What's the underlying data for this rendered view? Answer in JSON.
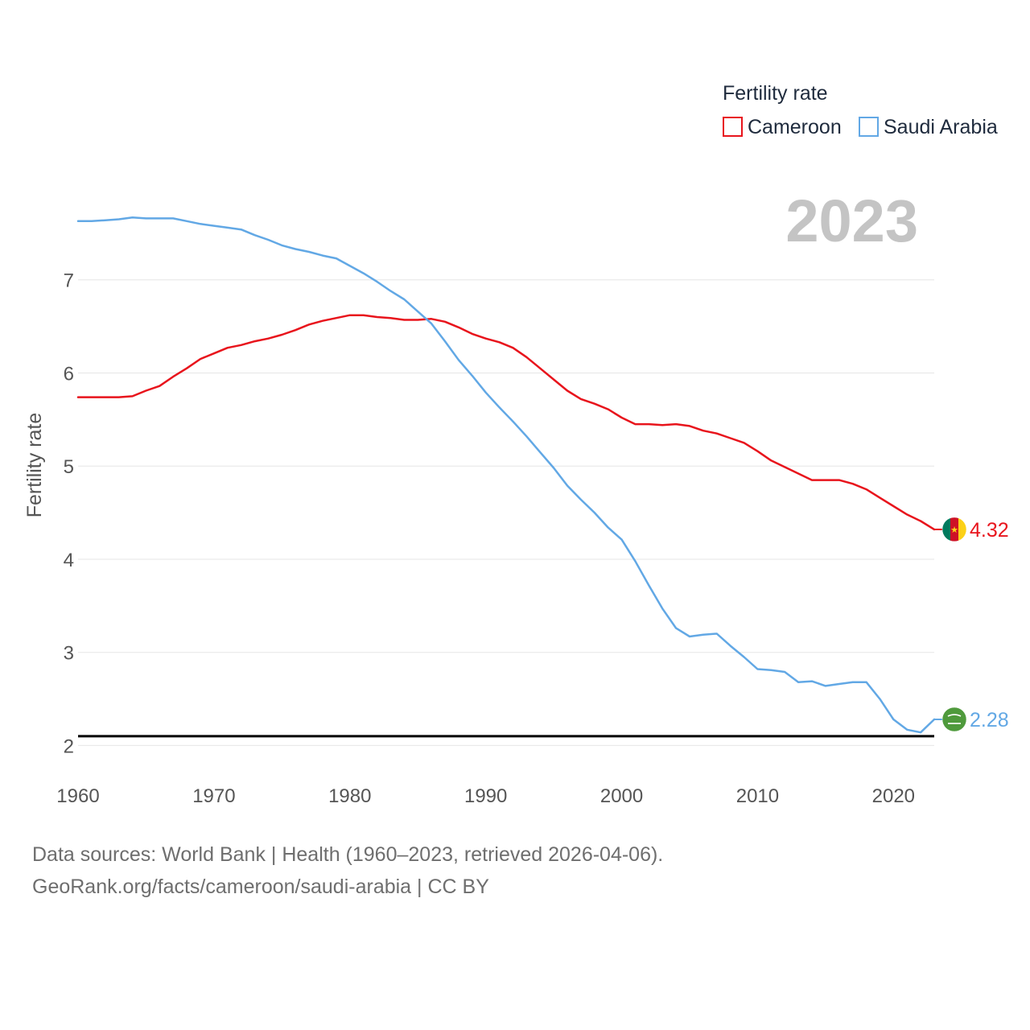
{
  "chart_data": {
    "type": "line",
    "ylabel": "Fertility rate",
    "xlabel": "",
    "year_label": "2023",
    "legend": {
      "title": "Fertility rate",
      "position": "top-right"
    },
    "xlim": [
      1960,
      2023
    ],
    "ylim": [
      1.9,
      8.0
    ],
    "x_ticks": [
      1960,
      1970,
      1980,
      1990,
      2000,
      2010,
      2020
    ],
    "y_ticks": [
      2,
      3,
      4,
      5,
      6,
      7
    ],
    "reference_line": {
      "value": 2.1,
      "color": "#000000"
    },
    "x": [
      1960,
      1961,
      1962,
      1963,
      1964,
      1965,
      1966,
      1967,
      1968,
      1969,
      1970,
      1971,
      1972,
      1973,
      1974,
      1975,
      1976,
      1977,
      1978,
      1979,
      1980,
      1981,
      1982,
      1983,
      1984,
      1985,
      1986,
      1987,
      1988,
      1989,
      1990,
      1991,
      1992,
      1993,
      1994,
      1995,
      1996,
      1997,
      1998,
      1999,
      2000,
      2001,
      2002,
      2003,
      2004,
      2005,
      2006,
      2007,
      2008,
      2009,
      2010,
      2011,
      2012,
      2013,
      2014,
      2015,
      2016,
      2017,
      2018,
      2019,
      2020,
      2021,
      2022,
      2023
    ],
    "series": [
      {
        "name": "Cameroon",
        "color": "#e8141c",
        "flag": "cameroon-flag",
        "end_value_label": "4.32",
        "values": [
          5.74,
          5.74,
          5.74,
          5.74,
          5.75,
          5.81,
          5.86,
          5.96,
          6.05,
          6.15,
          6.21,
          6.27,
          6.3,
          6.34,
          6.37,
          6.41,
          6.46,
          6.52,
          6.56,
          6.59,
          6.62,
          6.62,
          6.6,
          6.59,
          6.57,
          6.57,
          6.58,
          6.55,
          6.49,
          6.42,
          6.37,
          6.33,
          6.27,
          6.17,
          6.05,
          5.93,
          5.81,
          5.72,
          5.67,
          5.61,
          5.52,
          5.45,
          5.45,
          5.44,
          5.45,
          5.43,
          5.38,
          5.35,
          5.3,
          5.25,
          5.16,
          5.06,
          4.99,
          4.92,
          4.85,
          4.85,
          4.85,
          4.81,
          4.75,
          4.66,
          4.57,
          4.48,
          4.41,
          4.32
        ]
      },
      {
        "name": "Saudi Arabia",
        "color": "#62a8e5",
        "flag": "saudi-arabia-flag",
        "end_value_label": "2.28",
        "values": [
          7.63,
          7.63,
          7.64,
          7.65,
          7.67,
          7.66,
          7.66,
          7.66,
          7.63,
          7.6,
          7.58,
          7.56,
          7.54,
          7.48,
          7.43,
          7.37,
          7.33,
          7.3,
          7.26,
          7.23,
          7.15,
          7.07,
          6.98,
          6.88,
          6.79,
          6.66,
          6.53,
          6.34,
          6.14,
          5.97,
          5.79,
          5.63,
          5.48,
          5.32,
          5.15,
          4.98,
          4.79,
          4.64,
          4.5,
          4.34,
          4.21,
          3.98,
          3.72,
          3.47,
          3.26,
          3.17,
          3.19,
          3.2,
          3.07,
          2.95,
          2.82,
          2.81,
          2.79,
          2.68,
          2.69,
          2.64,
          2.66,
          2.68,
          2.68,
          2.5,
          2.28,
          2.17,
          2.14,
          2.28
        ]
      }
    ]
  },
  "source": {
    "line1": "Data sources: World Bank | Health (1960–2023, retrieved 2026-04-06).",
    "line2": "GeoRank.org/facts/cameroon/saudi-arabia | CC BY"
  }
}
